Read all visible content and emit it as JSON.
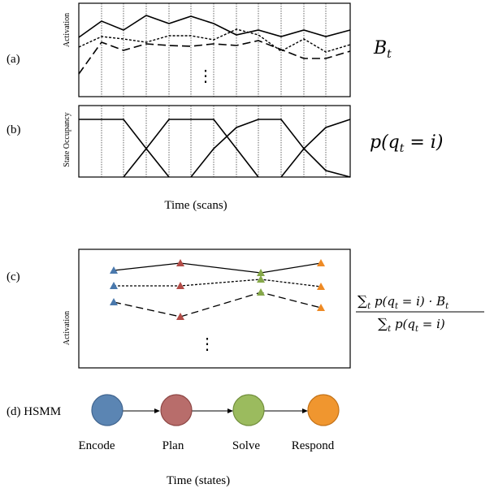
{
  "panels": {
    "a": {
      "tag": "(a)",
      "ylabel": "Activation",
      "equation": {
        "var": "B",
        "sub": "t"
      },
      "ellipsis": "⋮"
    },
    "b": {
      "tag": "(b)",
      "ylabel": "State Occupancy",
      "equation": "p(q_t = i)",
      "xlabel": "Time (scans)"
    },
    "c": {
      "tag": "(c)",
      "ylabel": "Activation",
      "ellipsis": "⋮",
      "equation": {
        "numerator": "Σ_t p(q_t = i) · B_t",
        "denominator": "Σ_t p(q_t = i)"
      }
    },
    "d": {
      "tag": "(d) HSMM",
      "states": [
        {
          "label": "Encode",
          "color": "#5b85b3"
        },
        {
          "label": "Plan",
          "color": "#b86d6b"
        },
        {
          "label": "Solve",
          "color": "#9bbb5e"
        },
        {
          "label": "Respond",
          "color": "#f0962f"
        }
      ],
      "xlabel": "Time (states)"
    }
  },
  "colors": {
    "line": "#000000",
    "encode": "#4a79ad",
    "plan": "#b24c47",
    "solve": "#86a84a",
    "respond": "#ee8a25"
  }
}
